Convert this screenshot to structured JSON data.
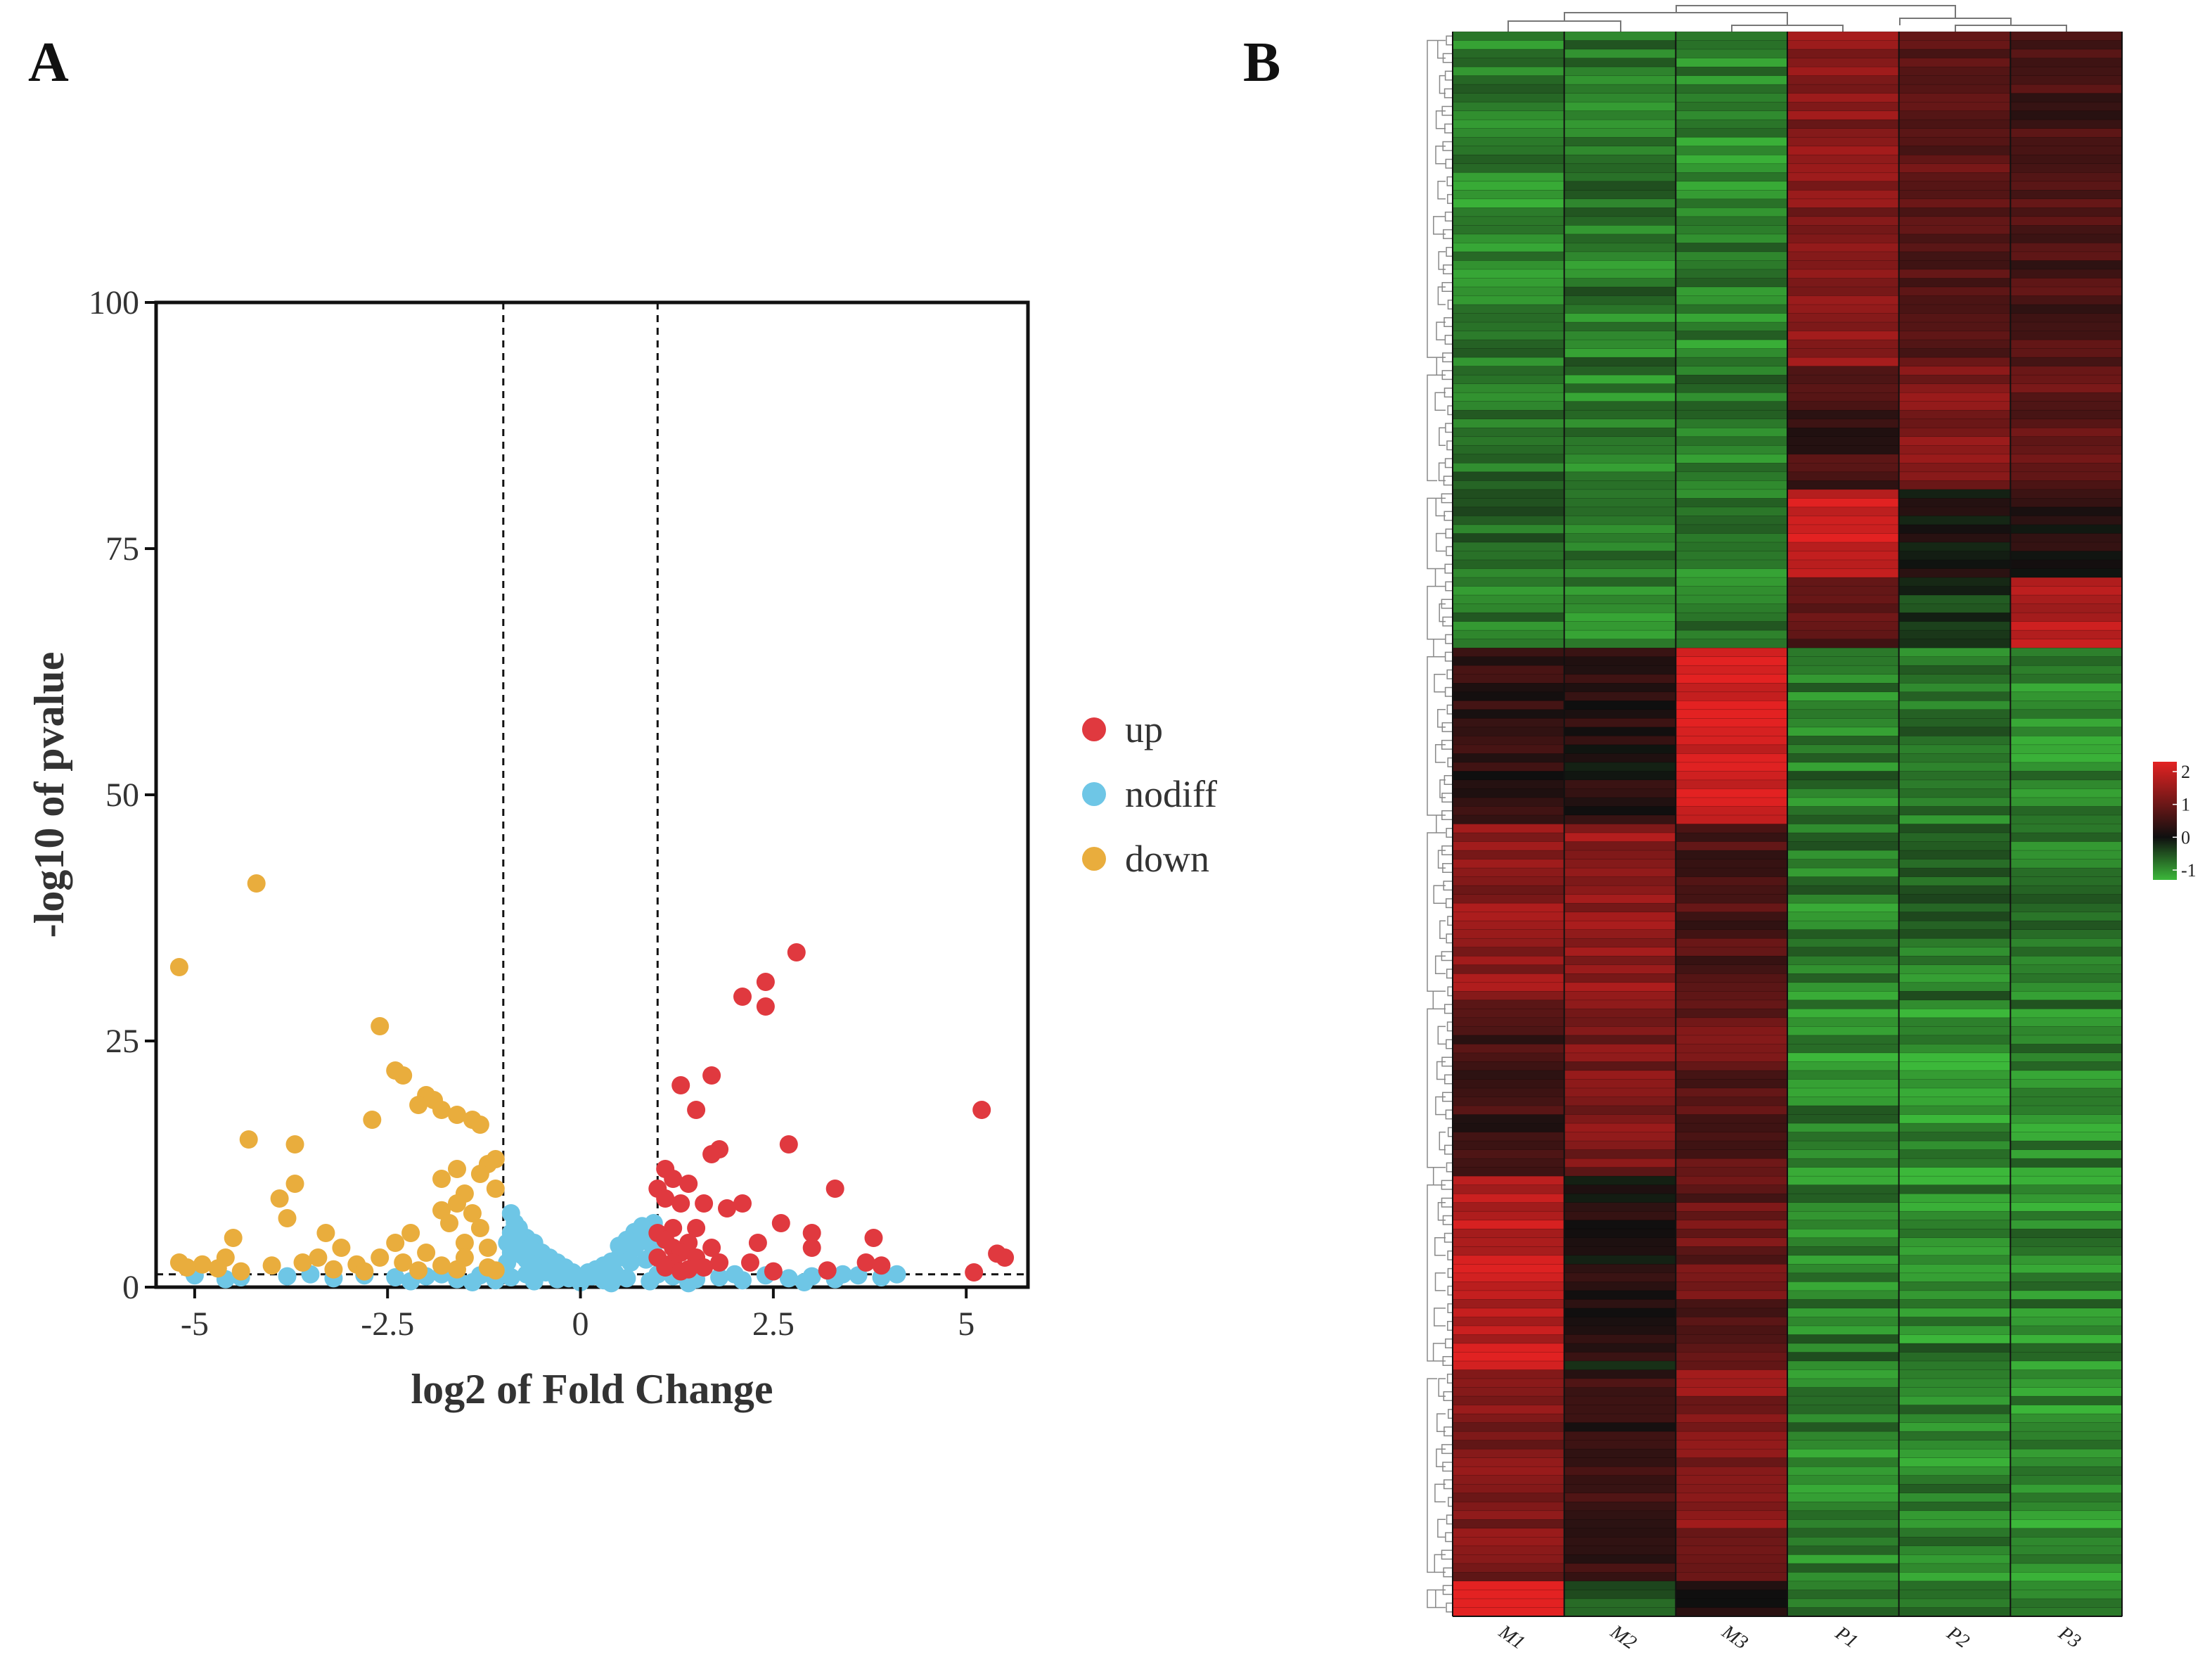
{
  "panels": {
    "a_label": "A",
    "b_label": "B"
  },
  "colors": {
    "up": "#e0393f",
    "nodiff": "#6ec6e6",
    "down": "#e9ad3d",
    "hm_low": "#3cb83a",
    "hm_mid": "#0f0f0f",
    "hm_high": "#e32222"
  },
  "chart_data": [
    {
      "type": "scatter",
      "subtype": "volcano",
      "xlabel": "log2 of Fold Change",
      "ylabel": "-log10 of pvalue",
      "xlim": [
        -5.5,
        5.8
      ],
      "ylim": [
        0,
        100
      ],
      "xticks": [
        -5,
        -2.5,
        0,
        2.5,
        5
      ],
      "xtick_labels": [
        "-5",
        "-2.5",
        "0",
        "2.5",
        "5"
      ],
      "yticks": [
        0,
        25,
        50,
        75,
        100
      ],
      "ytick_labels": [
        "0",
        "25",
        "50",
        "75",
        "100"
      ],
      "threshold_lines": {
        "fold_change": [
          -1,
          1
        ],
        "pvalue": 1.3
      },
      "legend": [
        {
          "key": "up",
          "label": "up"
        },
        {
          "key": "nodiff",
          "label": "nodiff"
        },
        {
          "key": "down",
          "label": "down"
        }
      ],
      "series": [
        {
          "name": "up",
          "points": [
            [
              2.8,
              34
            ],
            [
              2.4,
              31
            ],
            [
              2.4,
              28.5
            ],
            [
              2.1,
              29.5
            ],
            [
              1.7,
              21.5
            ],
            [
              1.3,
              20.5
            ],
            [
              1.5,
              18
            ],
            [
              5.2,
              18
            ],
            [
              2.7,
              14.5
            ],
            [
              1.8,
              14
            ],
            [
              1.7,
              13.5
            ],
            [
              1.1,
              12
            ],
            [
              1.2,
              11
            ],
            [
              1.4,
              10.5
            ],
            [
              1.0,
              10
            ],
            [
              3.3,
              10
            ],
            [
              1.1,
              9
            ],
            [
              1.3,
              8.5
            ],
            [
              1.6,
              8.5
            ],
            [
              2.1,
              8.5
            ],
            [
              1.9,
              8
            ],
            [
              2.6,
              6.5
            ],
            [
              1.2,
              6
            ],
            [
              1.5,
              6
            ],
            [
              1.0,
              5.5
            ],
            [
              3.0,
              5.5
            ],
            [
              3.8,
              5
            ],
            [
              1.1,
              4.8
            ],
            [
              1.4,
              4.5
            ],
            [
              2.3,
              4.5
            ],
            [
              1.2,
              4
            ],
            [
              1.7,
              4
            ],
            [
              3.0,
              4
            ],
            [
              1.3,
              3.5
            ],
            [
              1.5,
              3
            ],
            [
              1.0,
              3
            ],
            [
              1.2,
              2.5
            ],
            [
              1.8,
              2.5
            ],
            [
              2.2,
              2.5
            ],
            [
              3.7,
              2.5
            ],
            [
              1.1,
              2
            ],
            [
              1.6,
              2
            ],
            [
              3.9,
              2.2
            ],
            [
              5.4,
              3.4
            ],
            [
              5.5,
              3
            ],
            [
              1.4,
              1.8
            ],
            [
              2.5,
              1.6
            ],
            [
              3.2,
              1.7
            ],
            [
              5.1,
              1.5
            ],
            [
              1.3,
              1.6
            ]
          ]
        },
        {
          "name": "down",
          "points": [
            [
              -4.2,
              41
            ],
            [
              -5.2,
              32.5
            ],
            [
              -2.6,
              26.5
            ],
            [
              -2.4,
              22
            ],
            [
              -2.3,
              21.5
            ],
            [
              -2.0,
              19.5
            ],
            [
              -1.9,
              19
            ],
            [
              -2.1,
              18.5
            ],
            [
              -1.8,
              18
            ],
            [
              -1.6,
              17.5
            ],
            [
              -1.4,
              17
            ],
            [
              -2.7,
              17
            ],
            [
              -1.3,
              16.5
            ],
            [
              -4.3,
              15
            ],
            [
              -3.7,
              14.5
            ],
            [
              -1.1,
              13
            ],
            [
              -1.2,
              12.5
            ],
            [
              -1.6,
              12
            ],
            [
              -1.3,
              11.5
            ],
            [
              -1.8,
              11
            ],
            [
              -3.7,
              10.5
            ],
            [
              -1.1,
              10
            ],
            [
              -1.5,
              9.5
            ],
            [
              -3.9,
              9
            ],
            [
              -1.6,
              8.5
            ],
            [
              -1.8,
              7.8
            ],
            [
              -1.4,
              7.5
            ],
            [
              -3.8,
              7
            ],
            [
              -1.7,
              6.5
            ],
            [
              -1.3,
              6
            ],
            [
              -3.3,
              5.5
            ],
            [
              -2.2,
              5.5
            ],
            [
              -4.5,
              5
            ],
            [
              -2.4,
              4.5
            ],
            [
              -1.5,
              4.5
            ],
            [
              -1.2,
              4
            ],
            [
              -3.1,
              4
            ],
            [
              -2.0,
              3.5
            ],
            [
              -4.6,
              3
            ],
            [
              -3.4,
              3
            ],
            [
              -2.6,
              3
            ],
            [
              -1.5,
              3
            ],
            [
              -5.2,
              2.5
            ],
            [
              -4.9,
              2.3
            ],
            [
              -4.0,
              2.2
            ],
            [
              -3.6,
              2.5
            ],
            [
              -2.9,
              2.3
            ],
            [
              -2.3,
              2.5
            ],
            [
              -1.8,
              2.2
            ],
            [
              -1.2,
              2
            ],
            [
              -5.1,
              2
            ],
            [
              -4.7,
              1.9
            ],
            [
              -3.2,
              1.8
            ],
            [
              -2.1,
              1.7
            ],
            [
              -1.6,
              1.8
            ],
            [
              -1.1,
              1.7
            ],
            [
              -4.4,
              1.6
            ],
            [
              -2.8,
              1.6
            ]
          ]
        },
        {
          "name": "nodiff",
          "points": [
            [
              -0.9,
              7.5
            ],
            [
              -0.85,
              6.5
            ],
            [
              -0.8,
              6
            ],
            [
              -0.9,
              5.5
            ],
            [
              -0.7,
              5
            ],
            [
              -0.6,
              4.5
            ],
            [
              -0.8,
              4
            ],
            [
              -0.5,
              3.5
            ],
            [
              -0.9,
              3.5
            ],
            [
              -0.4,
              3
            ],
            [
              -0.7,
              2.8
            ],
            [
              -0.3,
              2.5
            ],
            [
              -0.6,
              2.3
            ],
            [
              -0.2,
              2
            ],
            [
              -0.5,
              1.8
            ],
            [
              -0.1,
              1.5
            ],
            [
              0.1,
              1.5
            ],
            [
              0.2,
              1.8
            ],
            [
              0.3,
              2.2
            ],
            [
              0.4,
              2.6
            ],
            [
              0.5,
              3
            ],
            [
              0.6,
              3.5
            ],
            [
              0.7,
              4
            ],
            [
              0.75,
              4.5
            ],
            [
              0.8,
              5
            ],
            [
              0.85,
              5.5
            ],
            [
              0.9,
              6
            ],
            [
              0.95,
              6.5
            ],
            [
              0.8,
              6.2
            ],
            [
              0.7,
              5.6
            ],
            [
              0.6,
              4.8
            ],
            [
              0.5,
              4.2
            ],
            [
              0.9,
              4.5
            ],
            [
              0.95,
              3.5
            ],
            [
              0.85,
              2.8
            ],
            [
              0.65,
              2.5
            ],
            [
              -0.95,
              2.5
            ],
            [
              -0.75,
              3.2
            ],
            [
              -0.95,
              4.5
            ],
            [
              -0.65,
              4
            ],
            [
              -5.0,
              1.2
            ],
            [
              -4.4,
              1
            ],
            [
              -3.8,
              1.1
            ],
            [
              -3.2,
              0.9
            ],
            [
              -2.8,
              1.2
            ],
            [
              -2.4,
              1
            ],
            [
              -2.0,
              1.1
            ],
            [
              -1.6,
              0.8
            ],
            [
              -1.3,
              1.2
            ],
            [
              -1.1,
              0.7
            ],
            [
              -0.9,
              1
            ],
            [
              -0.6,
              0.6
            ],
            [
              -0.3,
              0.8
            ],
            [
              0.0,
              0.5
            ],
            [
              0.3,
              0.7
            ],
            [
              0.6,
              0.9
            ],
            [
              0.9,
              0.6
            ],
            [
              1.2,
              1.1
            ],
            [
              1.5,
              0.8
            ],
            [
              1.8,
              1
            ],
            [
              2.1,
              0.7
            ],
            [
              2.4,
              1.2
            ],
            [
              2.7,
              0.9
            ],
            [
              3.0,
              1.1
            ],
            [
              3.3,
              0.8
            ],
            [
              3.6,
              1.2
            ],
            [
              3.9,
              1
            ],
            [
              4.1,
              1.3
            ],
            [
              -4.6,
              0.8
            ],
            [
              -3.5,
              1.3
            ],
            [
              -2.2,
              0.6
            ],
            [
              -1.8,
              1.3
            ],
            [
              -1.4,
              0.5
            ],
            [
              -0.7,
              1.3
            ],
            [
              0.4,
              0.4
            ],
            [
              1.0,
              1.3
            ],
            [
              1.4,
              0.4
            ],
            [
              2.0,
              1.3
            ],
            [
              2.9,
              0.5
            ],
            [
              3.4,
              1.3
            ],
            [
              -0.2,
              1.2
            ],
            [
              0.15,
              1.1
            ],
            [
              -0.45,
              1.5
            ],
            [
              0.45,
              1.4
            ],
            [
              -0.15,
              0.9
            ]
          ]
        }
      ]
    },
    {
      "type": "heatmap",
      "columns": [
        "M1",
        "M2",
        "M3",
        "P1",
        "P2",
        "P3"
      ],
      "colorbar": {
        "min": -1.3,
        "max": 2.3,
        "ticks": [
          2,
          1,
          0,
          -1
        ],
        "tick_labels": [
          "2",
          "1",
          "0",
          "-1"
        ]
      },
      "blocks": [
        {
          "rows": 38,
          "values": [
            -0.9,
            -0.8,
            -0.9,
            1.3,
            0.8,
            0.6
          ],
          "noise": 0.35
        },
        {
          "rows": 14,
          "values": [
            -0.8,
            -0.9,
            -0.8,
            0.5,
            1.3,
            0.9
          ],
          "noise": 0.35
        },
        {
          "rows": 10,
          "values": [
            -0.7,
            -0.8,
            -0.9,
            2.1,
            0.1,
            0.2
          ],
          "noise": 0.3
        },
        {
          "rows": 8,
          "values": [
            -0.8,
            -0.9,
            -0.8,
            0.8,
            -0.3,
            1.8
          ],
          "noise": 0.3
        },
        {
          "rows": 20,
          "values": [
            0.3,
            0.2,
            2.2,
            -0.8,
            -0.8,
            -0.9
          ],
          "noise": 0.35
        },
        {
          "rows": 20,
          "values": [
            1.4,
            1.5,
            0.6,
            -0.9,
            -0.8,
            -0.9
          ],
          "noise": 0.4
        },
        {
          "rows": 20,
          "values": [
            0.5,
            1.2,
            0.9,
            -0.9,
            -1.0,
            -0.9
          ],
          "noise": 0.4
        },
        {
          "rows": 22,
          "values": [
            1.9,
            0.1,
            0.9,
            -0.8,
            -0.9,
            -0.9
          ],
          "noise": 0.4
        },
        {
          "rows": 24,
          "values": [
            1.2,
            0.4,
            1.3,
            -0.9,
            -0.9,
            -1.0
          ],
          "noise": 0.35
        },
        {
          "rows": 4,
          "values": [
            2.3,
            -0.6,
            0.1,
            -0.8,
            -0.8,
            -0.8
          ],
          "noise": 0.2
        }
      ]
    }
  ]
}
